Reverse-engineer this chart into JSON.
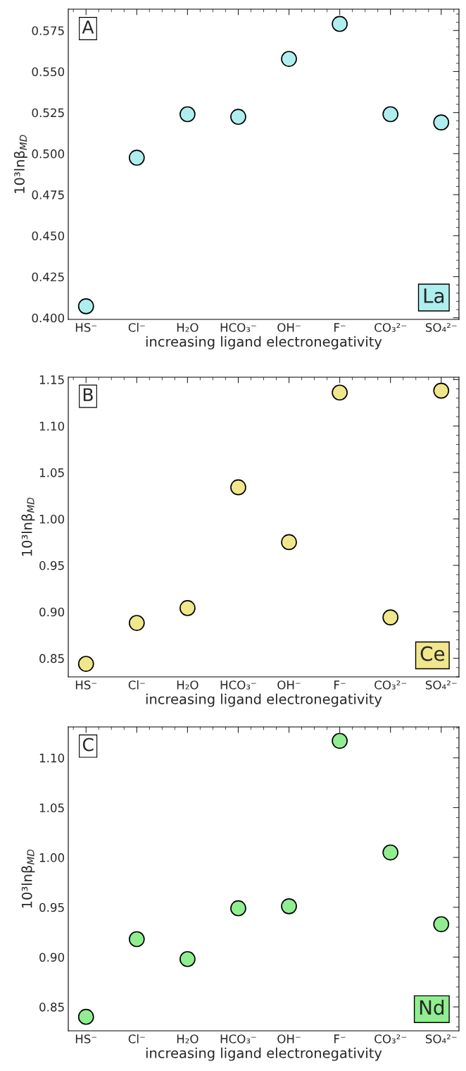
{
  "chart_data": [
    {
      "type": "scatter",
      "categories": [
        "HS⁻",
        "Cl⁻",
        "H₂O",
        "HCO₃⁻",
        "OH⁻",
        "F⁻",
        "CO₃²⁻",
        "SO₄²⁻"
      ],
      "xlabel": "increasing ligand electronegativity",
      "ylabel": "10³lnβ$_{MD}$",
      "series": [
        {
          "color": "#afeeee",
          "values": [
            0.407,
            0.4975,
            0.524,
            0.5224,
            0.5577,
            0.579,
            0.524,
            0.519
          ]
        }
      ],
      "ylim": [
        0.399,
        0.588
      ],
      "yticks": [
        {
          "value": 0.4,
          "label": "0.400"
        },
        0.425,
        {
          "value": 0.45,
          "label": "0.450"
        },
        0.475,
        {
          "value": 0.5,
          "label": "0.500"
        },
        0.525,
        {
          "value": 0.55,
          "label": "0.550"
        },
        0.575
      ],
      "marker": "circle",
      "grid": false,
      "legend": false,
      "annotations": [
        "A",
        "La"
      ]
    },
    {
      "type": "scatter",
      "categories": [
        "HS⁻",
        "Cl⁻",
        "H₂O",
        "HCO₃⁻",
        "OH⁻",
        "F⁻",
        "CO₃²⁻",
        "SO₄²⁻"
      ],
      "xlabel": "increasing ligand electronegativity",
      "ylabel": "10³lnβ$_{MD}$",
      "series": [
        {
          "color": "#f0e68c",
          "values": [
            0.844,
            0.888,
            0.904,
            1.034,
            0.975,
            1.136,
            0.894,
            1.138
          ]
        }
      ],
      "ylim": [
        0.83,
        1.1525
      ],
      "yticks": [
        0.85,
        {
          "value": 0.9,
          "label": "0.90"
        },
        0.95,
        {
          "value": 1.0,
          "label": "1.00"
        },
        1.05,
        {
          "value": 1.1,
          "label": "1.10"
        },
        1.15
      ],
      "marker": "circle",
      "grid": false,
      "legend": false,
      "annotations": [
        "B",
        "Ce"
      ]
    },
    {
      "type": "scatter",
      "categories": [
        "HS⁻",
        "Cl⁻",
        "H₂O",
        "HCO₃⁻",
        "OH⁻",
        "F⁻",
        "CO₃²⁻",
        "SO₄²⁻"
      ],
      "xlabel": "increasing ligand electronegativity",
      "ylabel": "10³lnβ$_{MD}$",
      "series": [
        {
          "color": "#90ee90",
          "values": [
            0.84,
            0.918,
            0.898,
            0.949,
            0.951,
            1.117,
            1.005,
            0.933
          ]
        }
      ],
      "ylim": [
        0.826,
        1.131
      ],
      "yticks": [
        0.85,
        {
          "value": 0.9,
          "label": "0.90"
        },
        0.95,
        {
          "value": 1.0,
          "label": "1.00"
        },
        1.05,
        {
          "value": 1.1,
          "label": "1.10"
        }
      ],
      "marker": "circle",
      "grid": false,
      "legend": false,
      "annotations": [
        "C",
        "Nd"
      ]
    }
  ]
}
